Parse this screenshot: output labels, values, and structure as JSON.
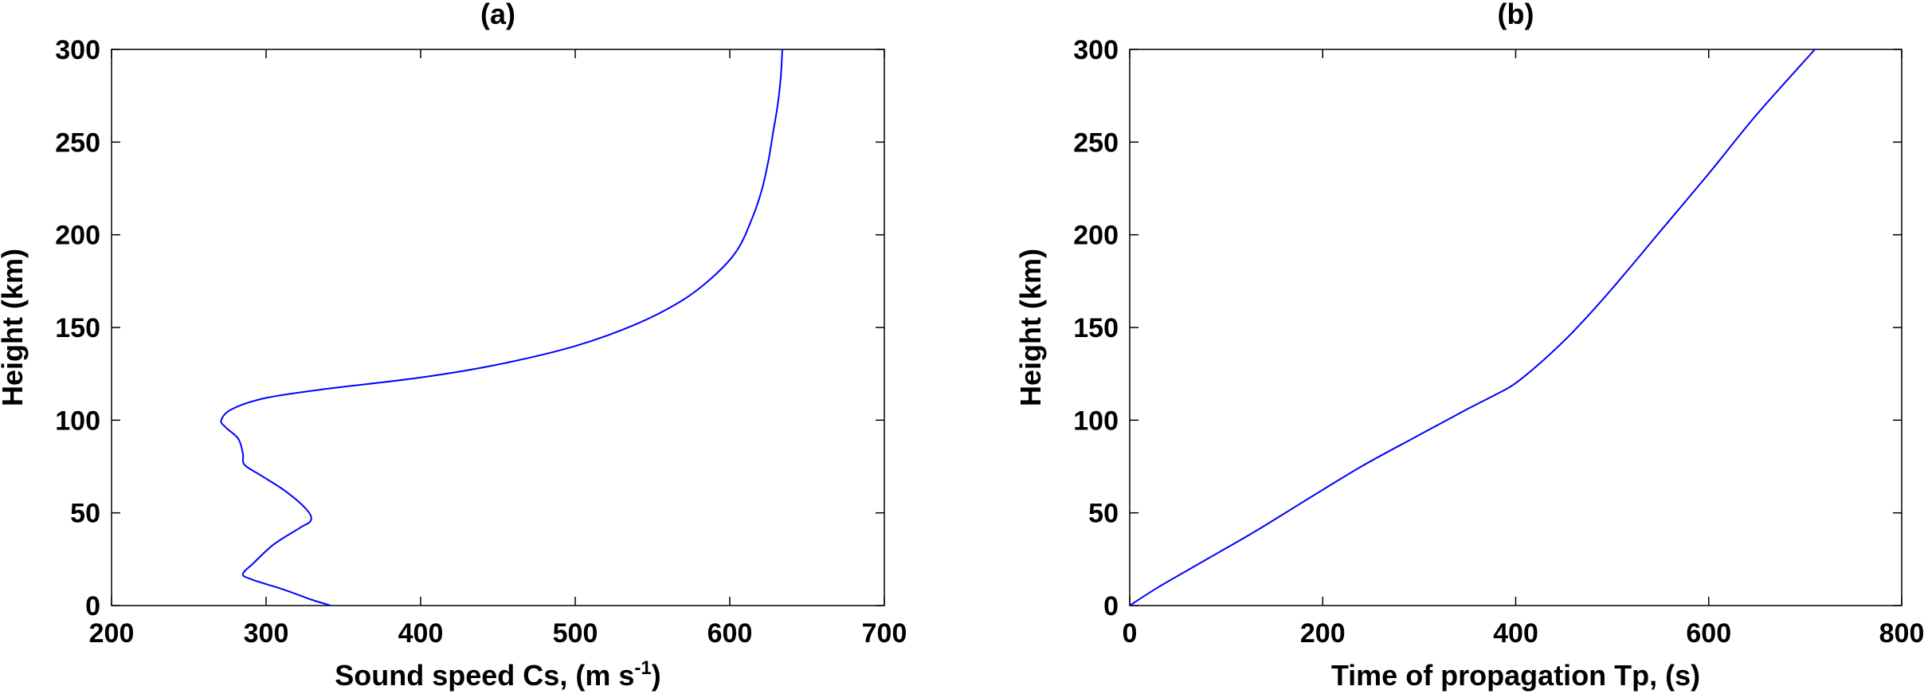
{
  "chart_data": [
    {
      "type": "line",
      "title": "(a)",
      "xlabel": "Sound speed Cs, (m s",
      "xlabel_sup": "-1",
      "xlabel_end": ")",
      "ylabel": "Height (km)",
      "xlim": [
        200,
        700
      ],
      "ylim": [
        0,
        300
      ],
      "xticks": [
        200,
        300,
        400,
        500,
        600,
        700
      ],
      "yticks": [
        0,
        50,
        100,
        150,
        200,
        250,
        300
      ],
      "grid": false,
      "series": [
        {
          "color": "#0000ff",
          "x": [
            342,
            330,
            310,
            291,
            285,
            292,
            305,
            322,
            329,
            326,
            312,
            297,
            286,
            285,
            282,
            274,
            271,
            278,
            300,
            340,
            400,
            450,
            500,
            540,
            570,
            590,
            605,
            615,
            621,
            625,
            628,
            631,
            633,
            634
          ],
          "y": [
            0,
            3,
            9,
            14,
            17,
            23,
            33,
            42,
            46,
            52,
            62,
            70,
            76,
            82,
            90,
            96,
            100,
            106,
            112,
            117,
            123,
            130,
            140,
            152,
            165,
            178,
            192,
            210,
            225,
            240,
            255,
            270,
            285,
            300
          ]
        }
      ]
    },
    {
      "type": "line",
      "title": "(b)",
      "xlabel": "Time of propagation Tp, (s)",
      "ylabel": "Height (km)",
      "xlim": [
        0,
        800
      ],
      "ylim": [
        0,
        300
      ],
      "xticks": [
        0,
        200,
        400,
        600,
        800
      ],
      "yticks": [
        0,
        50,
        100,
        150,
        200,
        250,
        300
      ],
      "grid": false,
      "series": [
        {
          "color": "#0000ff",
          "x": [
            0,
            30,
            80,
            130,
            180,
            240,
            300,
            350,
            380,
            400,
            430,
            460,
            500,
            550,
            600,
            650,
            710
          ],
          "y": [
            0,
            10,
            25,
            40,
            56,
            75,
            92,
            106,
            114,
            120,
            133,
            148,
            171,
            202,
            233,
            265,
            300
          ]
        }
      ]
    }
  ]
}
